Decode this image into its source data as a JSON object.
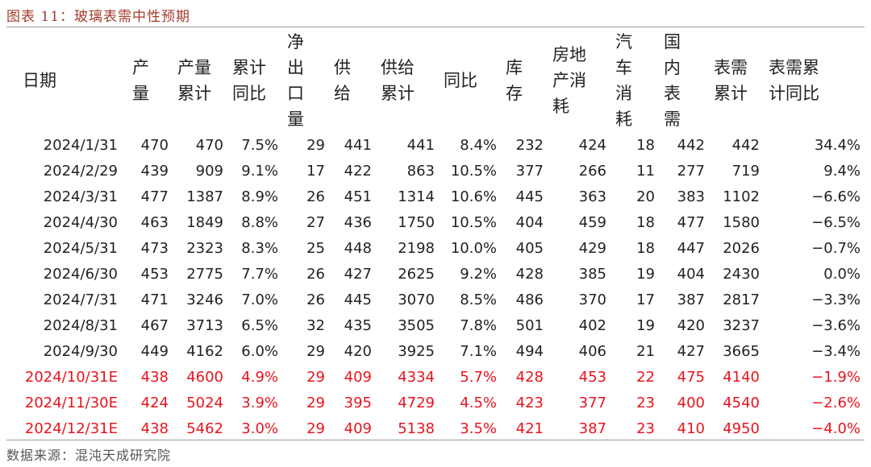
{
  "title": "图表 11：玻璃表需中性预期",
  "source": "数据来源：混沌天成研究院",
  "headers": [
    {
      "lines": [
        "日期"
      ]
    },
    {
      "lines": [
        "产",
        "量"
      ]
    },
    {
      "lines": [
        "产量",
        "累计"
      ]
    },
    {
      "lines": [
        "累计",
        "同比"
      ]
    },
    {
      "lines": [
        "净",
        "出",
        "口",
        "量"
      ]
    },
    {
      "lines": [
        "供",
        "给"
      ]
    },
    {
      "lines": [
        "供给",
        "累计"
      ]
    },
    {
      "lines": [
        "同比"
      ]
    },
    {
      "lines": [
        "库",
        "存"
      ]
    },
    {
      "lines": [
        "房地",
        "产消",
        "耗"
      ]
    },
    {
      "lines": [
        "汽",
        "车",
        "消",
        "耗"
      ]
    },
    {
      "lines": [
        "国",
        "内",
        "表",
        "需"
      ]
    },
    {
      "lines": [
        "表需",
        "累计"
      ]
    },
    {
      "lines": [
        "表需累",
        "计同比"
      ]
    }
  ],
  "rows": [
    {
      "estimate": false,
      "cells": [
        "2024/1/31",
        "470",
        "470",
        "7.5%",
        "29",
        "441",
        "441",
        "8.4%",
        "232",
        "424",
        "18",
        "442",
        "442",
        "34.4%"
      ]
    },
    {
      "estimate": false,
      "cells": [
        "2024/2/29",
        "439",
        "909",
        "9.1%",
        "17",
        "422",
        "863",
        "10.5%",
        "377",
        "266",
        "11",
        "277",
        "719",
        "9.4%"
      ]
    },
    {
      "estimate": false,
      "cells": [
        "2024/3/31",
        "477",
        "1387",
        "8.9%",
        "26",
        "451",
        "1314",
        "10.6%",
        "445",
        "363",
        "20",
        "383",
        "1102",
        "−6.6%"
      ]
    },
    {
      "estimate": false,
      "cells": [
        "2024/4/30",
        "463",
        "1849",
        "8.8%",
        "27",
        "436",
        "1750",
        "10.5%",
        "404",
        "459",
        "18",
        "477",
        "1580",
        "−6.5%"
      ]
    },
    {
      "estimate": false,
      "cells": [
        "2024/5/31",
        "473",
        "2323",
        "8.3%",
        "25",
        "448",
        "2198",
        "10.0%",
        "405",
        "429",
        "18",
        "447",
        "2026",
        "−0.7%"
      ]
    },
    {
      "estimate": false,
      "cells": [
        "2024/6/30",
        "453",
        "2775",
        "7.7%",
        "26",
        "427",
        "2625",
        "9.2%",
        "428",
        "385",
        "19",
        "404",
        "2430",
        "0.0%"
      ]
    },
    {
      "estimate": false,
      "cells": [
        "2024/7/31",
        "471",
        "3246",
        "7.0%",
        "26",
        "445",
        "3070",
        "8.5%",
        "486",
        "370",
        "17",
        "387",
        "2817",
        "−3.3%"
      ]
    },
    {
      "estimate": false,
      "cells": [
        "2024/8/31",
        "467",
        "3713",
        "6.5%",
        "32",
        "435",
        "3505",
        "7.8%",
        "501",
        "402",
        "19",
        "420",
        "3237",
        "−3.6%"
      ]
    },
    {
      "estimate": false,
      "cells": [
        "2024/9/30",
        "449",
        "4162",
        "6.0%",
        "29",
        "420",
        "3925",
        "7.1%",
        "494",
        "406",
        "21",
        "427",
        "3665",
        "−3.4%"
      ]
    },
    {
      "estimate": true,
      "cells": [
        "2024/10/31E",
        "438",
        "4600",
        "4.9%",
        "29",
        "409",
        "4334",
        "5.7%",
        "428",
        "453",
        "22",
        "475",
        "4140",
        "−1.9%"
      ]
    },
    {
      "estimate": true,
      "cells": [
        "2024/11/30E",
        "424",
        "5024",
        "3.9%",
        "29",
        "395",
        "4729",
        "4.5%",
        "423",
        "377",
        "23",
        "400",
        "4540",
        "−2.6%"
      ]
    },
    {
      "estimate": true,
      "cells": [
        "2024/12/31E",
        "438",
        "5462",
        "3.0%",
        "29",
        "409",
        "5138",
        "3.5%",
        "421",
        "387",
        "23",
        "410",
        "4950",
        "−4.0%"
      ]
    }
  ]
}
